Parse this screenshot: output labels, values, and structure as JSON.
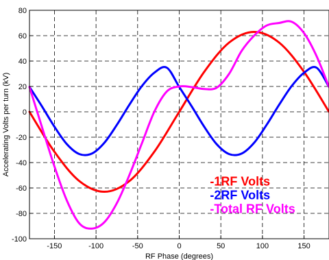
{
  "chart_data": {
    "type": "line",
    "title": "",
    "xlabel": "RF Phase (degrees)",
    "ylabel": "Accelerating Volts per turn (kV)",
    "xlim": [
      -180,
      180
    ],
    "ylim": [
      -100,
      80
    ],
    "xticks": [
      -150,
      -100,
      -50,
      0,
      50,
      100,
      150
    ],
    "yticks": [
      -100,
      -80,
      -60,
      -40,
      -20,
      0,
      20,
      40,
      60,
      80
    ],
    "grid": true,
    "grid_style": "dashed",
    "legend_placement": "lower-right",
    "series": [
      {
        "name": "-1RF Volts",
        "color": "#ff0000",
        "x": [
          -180,
          -150,
          -120,
          -90,
          -60,
          -30,
          0,
          30,
          60,
          90,
          120,
          150,
          180
        ],
        "y": [
          0,
          -31.5,
          -54.6,
          -63,
          -54.6,
          -31.5,
          0,
          31.5,
          54.6,
          63,
          54.6,
          31.5,
          0
        ]
      },
      {
        "name": "-2RF Volts",
        "color": "#0000ff",
        "x": [
          -180,
          -165,
          -150,
          -135,
          -120,
          -105,
          -90,
          -75,
          -60,
          -45,
          -30,
          -15,
          0,
          15,
          30,
          45,
          60,
          75,
          90,
          105,
          120,
          135,
          150,
          165,
          180
        ],
        "y": [
          19.6,
          4.3,
          -11.7,
          -25.5,
          -33.3,
          -32.9,
          -24.4,
          -10.3,
          5.5,
          20.2,
          30.8,
          34.8,
          19.6,
          4.3,
          -11.7,
          -25.5,
          -33.3,
          -32.9,
          -24.4,
          -10.3,
          5.5,
          20.2,
          30.8,
          34.8,
          19.6
        ]
      },
      {
        "name": "-Total RF Volts",
        "color": "#ff00ff",
        "x": [
          -180,
          -165,
          -150,
          -135,
          -120,
          -105,
          -90,
          -75,
          -60,
          -45,
          -30,
          -15,
          0,
          15,
          30,
          45,
          60,
          75,
          90,
          105,
          120,
          135,
          150,
          165,
          180
        ],
        "y": [
          19.6,
          -12,
          -43,
          -70,
          -88,
          -92,
          -87,
          -72,
          -50,
          -25,
          0,
          16,
          20,
          19.5,
          18,
          19,
          30,
          48,
          60,
          68,
          70,
          71,
          62,
          44,
          19.6
        ]
      }
    ]
  }
}
